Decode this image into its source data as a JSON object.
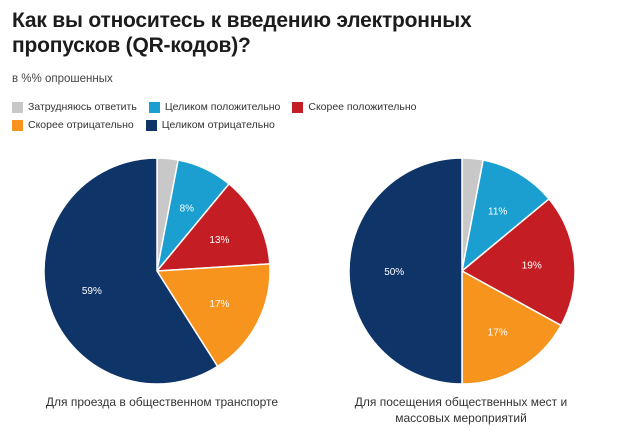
{
  "title": "Как вы относитесь к введению электронных пропусков (QR-кодов)?",
  "subtitle": "в %% опрошенных",
  "legend": [
    {
      "label": "Затрудняюсь ответить",
      "color": "#c8c8c8"
    },
    {
      "label": "Целиком положительно",
      "color": "#1b9fd1"
    },
    {
      "label": "Скорее положительно",
      "color": "#c41e24"
    },
    {
      "label": "Скорее отрицательно",
      "color": "#f7941d"
    },
    {
      "label": "Целиком отрицательно",
      "color": "#0f3468"
    }
  ],
  "chart_data": [
    {
      "type": "pie",
      "caption": "Для проезда в общественном транспорте",
      "slices": [
        {
          "category": "Затрудняюсь ответить",
          "value": 3,
          "label": ""
        },
        {
          "category": "Целиком положительно",
          "value": 8,
          "label": "8%"
        },
        {
          "category": "Скорее положительно",
          "value": 13,
          "label": "13%"
        },
        {
          "category": "Скорее отрицательно",
          "value": 17,
          "label": "17%"
        },
        {
          "category": "Целиком отрицательно",
          "value": 59,
          "label": "59%"
        }
      ]
    },
    {
      "type": "pie",
      "caption": "Для посещения общественных мест и массовых мероприятий",
      "slices": [
        {
          "category": "Затрудняюсь ответить",
          "value": 3,
          "label": ""
        },
        {
          "category": "Целиком положительно",
          "value": 11,
          "label": "11%"
        },
        {
          "category": "Скорее положительно",
          "value": 19,
          "label": "19%"
        },
        {
          "category": "Скорее отрицательно",
          "value": 17,
          "label": "17%"
        },
        {
          "category": "Целиком отрицательно",
          "value": 50,
          "label": "50%"
        }
      ]
    }
  ]
}
